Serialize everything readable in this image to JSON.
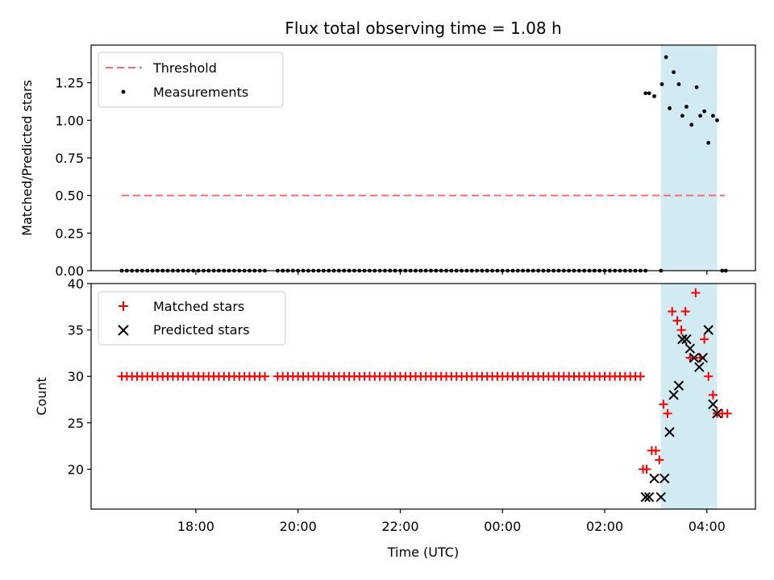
{
  "chart_data": [
    {
      "type": "scatter",
      "title": "Flux total observing time = 1.08 h",
      "xlabel": "",
      "ylabel": "Matched/Predicted stars",
      "ylim": [
        0,
        1.5
      ],
      "yticks": [
        "0.00",
        "0.25",
        "0.50",
        "0.75",
        "1.00",
        "1.25"
      ],
      "x_axis": "time (UTC), hours relative to 00:00",
      "xlim": [
        -8.05,
        4.95
      ],
      "shaded_interval": [
        3.1,
        4.2
      ],
      "shaded_color": "#add8e6",
      "threshold": {
        "name": "Threshold",
        "value": 0.5,
        "x_range": [
          -7.45,
          4.35
        ],
        "color": "#ff6a6a"
      },
      "legend": [
        "Threshold",
        "Measurements"
      ],
      "legend_position": "upper-left",
      "series": [
        {
          "name": "Measurements",
          "color": "#000000",
          "segments": [
            {
              "x_start": -7.45,
              "x_end": -4.6,
              "step": 0.1,
              "y": 0
            },
            {
              "x_start": -4.4,
              "x_end": -3.2,
              "step": 0.1,
              "y": 0
            },
            {
              "x_start": -3.1,
              "x_end": 2.8,
              "step": 0.1,
              "y": 0
            }
          ],
          "points": [
            [
              2.8,
              1.18
            ],
            [
              2.87,
              1.18
            ],
            [
              2.97,
              1.16
            ],
            [
              3.1,
              0.0
            ],
            [
              3.12,
              1.24
            ],
            [
              3.2,
              1.42
            ],
            [
              3.27,
              1.08
            ],
            [
              3.35,
              1.32
            ],
            [
              3.45,
              1.24
            ],
            [
              3.52,
              1.03
            ],
            [
              3.6,
              1.09
            ],
            [
              3.7,
              0.97
            ],
            [
              3.8,
              1.22
            ],
            [
              3.87,
              1.03
            ],
            [
              3.95,
              1.06
            ],
            [
              4.03,
              0.85
            ],
            [
              4.12,
              1.03
            ],
            [
              4.2,
              1.0
            ],
            [
              4.3,
              0.0
            ],
            [
              4.37,
              0.0
            ]
          ]
        }
      ]
    },
    {
      "type": "scatter",
      "xlabel": "Time (UTC)",
      "ylabel": "Count",
      "ylim": [
        15.7,
        40
      ],
      "yticks": [
        "20",
        "25",
        "30",
        "35",
        "40"
      ],
      "xlim": [
        -8.05,
        4.95
      ],
      "xticks": [
        "18:00",
        "20:00",
        "22:00",
        "00:00",
        "02:00",
        "04:00"
      ],
      "xtick_values": [
        -6,
        -4,
        -2,
        0,
        2,
        4
      ],
      "shaded_interval": [
        3.1,
        4.2
      ],
      "shaded_color": "#add8e6",
      "legend": [
        "Matched stars",
        "Predicted stars"
      ],
      "legend_position": "upper-left",
      "series": [
        {
          "name": "Matched stars",
          "marker": "+",
          "color": "#ff0000",
          "segments": [
            {
              "x_start": -7.45,
              "x_end": -4.6,
              "step": 0.1,
              "y": 30
            },
            {
              "x_start": -4.4,
              "x_end": -3.2,
              "step": 0.1,
              "y": 30
            },
            {
              "x_start": -3.1,
              "x_end": 2.7,
              "step": 0.1,
              "y": 30
            }
          ],
          "points": [
            [
              2.75,
              20
            ],
            [
              2.82,
              20
            ],
            [
              2.92,
              22
            ],
            [
              3.0,
              22
            ],
            [
              3.07,
              21
            ],
            [
              3.15,
              27
            ],
            [
              3.23,
              26
            ],
            [
              3.32,
              37
            ],
            [
              3.42,
              36
            ],
            [
              3.5,
              35
            ],
            [
              3.58,
              37
            ],
            [
              3.67,
              32
            ],
            [
              3.78,
              39
            ],
            [
              3.87,
              32
            ],
            [
              3.95,
              34
            ],
            [
              4.03,
              30
            ],
            [
              4.12,
              28
            ],
            [
              4.2,
              26
            ],
            [
              4.3,
              26
            ],
            [
              4.4,
              26
            ]
          ]
        },
        {
          "name": "Predicted stars",
          "marker": "x",
          "color": "#000000",
          "points": [
            [
              2.8,
              17
            ],
            [
              2.87,
              17
            ],
            [
              2.97,
              19
            ],
            [
              3.1,
              17
            ],
            [
              3.17,
              19
            ],
            [
              3.27,
              24
            ],
            [
              3.35,
              28
            ],
            [
              3.45,
              29
            ],
            [
              3.52,
              34
            ],
            [
              3.6,
              34
            ],
            [
              3.67,
              33
            ],
            [
              3.75,
              32
            ],
            [
              3.85,
              31
            ],
            [
              3.92,
              32
            ],
            [
              4.03,
              35
            ],
            [
              4.12,
              27
            ],
            [
              4.2,
              26
            ]
          ]
        }
      ]
    }
  ]
}
